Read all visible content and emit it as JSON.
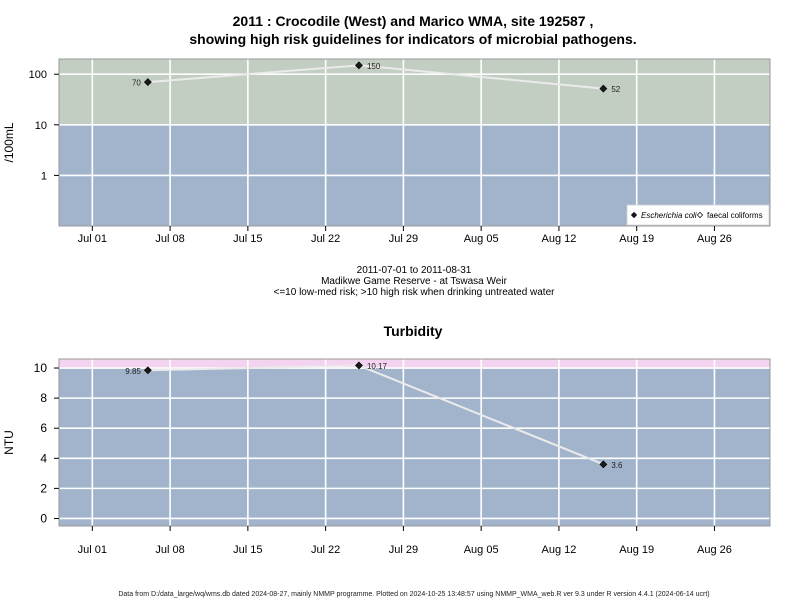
{
  "chart_data": [
    {
      "type": "line",
      "title_lines": [
        "2011 : Crocodile (West) and Marico WMA, site 192587 ,",
        "showing high risk guidelines for indicators of microbial pathogens."
      ],
      "ylabel": "/100mL",
      "y_scale": "log10",
      "ylim": [
        0.1,
        200
      ],
      "y_ticks": [
        1,
        10,
        100
      ],
      "y_tick_labels": [
        "1",
        "10",
        "100"
      ],
      "x_range": [
        "2011-06-28",
        "2011-08-31"
      ],
      "x_ticks": [
        "2011-07-01",
        "2011-07-08",
        "2011-07-15",
        "2011-07-22",
        "2011-07-29",
        "2011-08-05",
        "2011-08-12",
        "2011-08-19",
        "2011-08-26"
      ],
      "x_tick_labels": [
        "Jul 01",
        "Jul 08",
        "Jul 15",
        "Jul 22",
        "Jul 29",
        "Aug 05",
        "Aug 12",
        "Aug 19",
        "Aug 26"
      ],
      "grid": true,
      "risk_bands": [
        {
          "from": 0.1,
          "to": 10,
          "color": "#a2b4cc"
        },
        {
          "from": 10,
          "to": 200,
          "color": "#c2cec2"
        }
      ],
      "series": [
        {
          "name": "Escherichia coli",
          "marker": "filled-diamond",
          "line_color": "#ebebeb",
          "x": [
            "2011-07-06",
            "2011-07-25",
            "2011-08-16"
          ],
          "y": [
            70,
            150,
            52
          ],
          "labels": [
            "70",
            "150",
            "52"
          ]
        }
      ],
      "legend": {
        "position": "bottom-right",
        "entries": [
          {
            "label": "Escherichia coli",
            "marker": "filled-diamond",
            "italic": true
          },
          {
            "label": "faecal coliforms",
            "marker": "open-diamond",
            "italic": false
          }
        ]
      },
      "caption_lines": [
        "2011-07-01 to 2011-08-31",
        "Madikwe Game Reserve - at Tswasa Weir",
        "<=10 low-med risk; >10 high risk when drinking untreated water"
      ]
    },
    {
      "type": "line",
      "title": "Turbidity",
      "ylabel": "NTU",
      "y_scale": "linear",
      "ylim": [
        -0.5,
        10.6
      ],
      "y_ticks": [
        0,
        2,
        4,
        6,
        8,
        10
      ],
      "y_tick_labels": [
        "0",
        "2",
        "4",
        "6",
        "8",
        "10"
      ],
      "x_range": [
        "2011-06-28",
        "2011-08-31"
      ],
      "x_ticks": [
        "2011-07-01",
        "2011-07-08",
        "2011-07-15",
        "2011-07-22",
        "2011-07-29",
        "2011-08-05",
        "2011-08-12",
        "2011-08-19",
        "2011-08-26"
      ],
      "x_tick_labels": [
        "Jul 01",
        "Jul 08",
        "Jul 15",
        "Jul 22",
        "Jul 29",
        "Aug 05",
        "Aug 12",
        "Aug 19",
        "Aug 26"
      ],
      "grid": true,
      "risk_bands": [
        {
          "from": -0.5,
          "to": 10,
          "color": "#a2b4cc"
        },
        {
          "from": 10,
          "to": 10.6,
          "color": "#f3d3ef"
        }
      ],
      "series": [
        {
          "marker": "filled-diamond",
          "line_color": "#ebebeb",
          "x": [
            "2011-07-06",
            "2011-07-25",
            "2011-08-16"
          ],
          "y": [
            9.85,
            10.17,
            3.6
          ],
          "labels": [
            "9.85",
            "10.17",
            "3.6"
          ]
        }
      ]
    }
  ],
  "footer": "Data from D:/data_large/wq/wms.db dated 2024-08-27, mainly NMMP programme. Plotted on 2024-10-25 13:48:57 using NMMP_WMA_web.R ver 9.3 under R version 4.4.1 (2024-06-14 ucrt)"
}
